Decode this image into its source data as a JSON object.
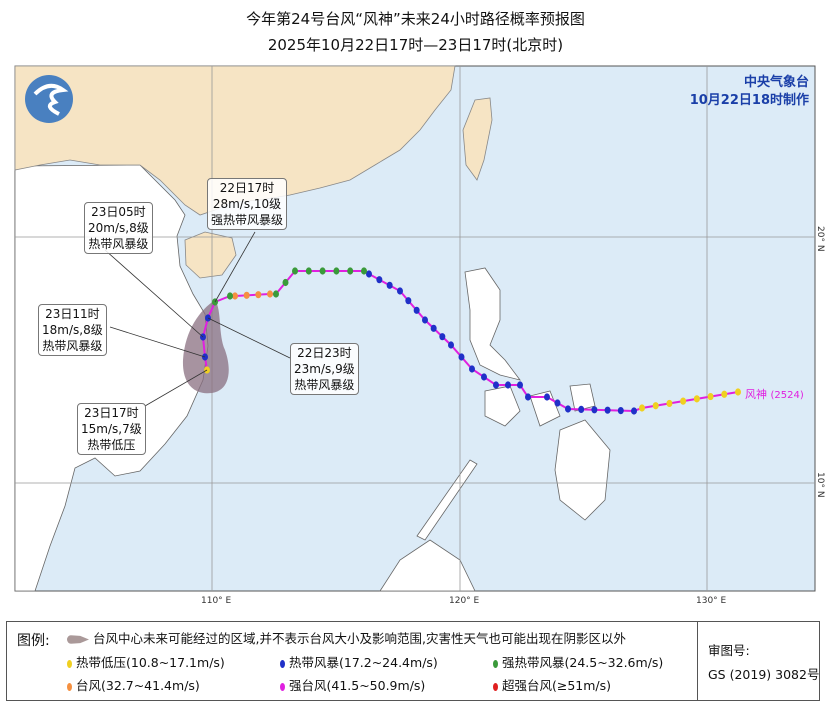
{
  "title": {
    "line1": "今年第24号台风“风神”未来24小时路径概率预报图",
    "line2": "2025年10月22日17时—23日17时(北京时)"
  },
  "agency": {
    "name": "中央气象台",
    "issued": "10月22日18时制作"
  },
  "axes": {
    "lon_labels": [
      "110° E",
      "120° E",
      "130° E"
    ],
    "lat_labels": [
      "20° N",
      "10° N"
    ]
  },
  "typhoon": {
    "name": "风神",
    "code": "(2524)"
  },
  "callouts": [
    {
      "time": "22日17时",
      "wind": "28m/s,10级",
      "level": "强热带风暴级"
    },
    {
      "time": "23日05时",
      "wind": "20m/s,8级",
      "level": "热带风暴级"
    },
    {
      "time": "23日11时",
      "wind": "18m/s,8级",
      "level": "热带风暴级"
    },
    {
      "time": "22日23时",
      "wind": "23m/s,9级",
      "level": "热带风暴级"
    },
    {
      "time": "23日17时",
      "wind": "15m/s,7级",
      "level": "热带低压"
    }
  ],
  "colors": {
    "land_china": "#f6e4c4",
    "land_other": "#ffffff",
    "sea": "#dcebf7",
    "track": "#e020e0",
    "cone": "#8a6f80",
    "td": "#f0d020",
    "ts": "#2030c8",
    "sts": "#3a9a3a",
    "ty": "#f59040",
    "sty": "#e020e0",
    "superty": "#e02020"
  },
  "legend": {
    "label": "图例:",
    "cone": "台风中心未来可能经过的区域,并不表示台风大小及影响范围,灾害性天气也可能出现在阴影区以外",
    "items": [
      {
        "text": "热带低压(10.8~17.1m/s)",
        "color": "#f0d020"
      },
      {
        "text": "热带风暴(17.2~24.4m/s)",
        "color": "#2030c8"
      },
      {
        "text": "强热带风暴(24.5~32.6m/s)",
        "color": "#3a9a3a"
      },
      {
        "text": "台风(32.7~41.4m/s)",
        "color": "#f59040"
      },
      {
        "text": "强台风(41.5~50.9m/s)",
        "color": "#e020e0"
      },
      {
        "text": "超强台风(≥51m/s)",
        "color": "#e02020"
      }
    ],
    "review_label": "审图号:",
    "review_no": "GS (2019) 3082号"
  }
}
